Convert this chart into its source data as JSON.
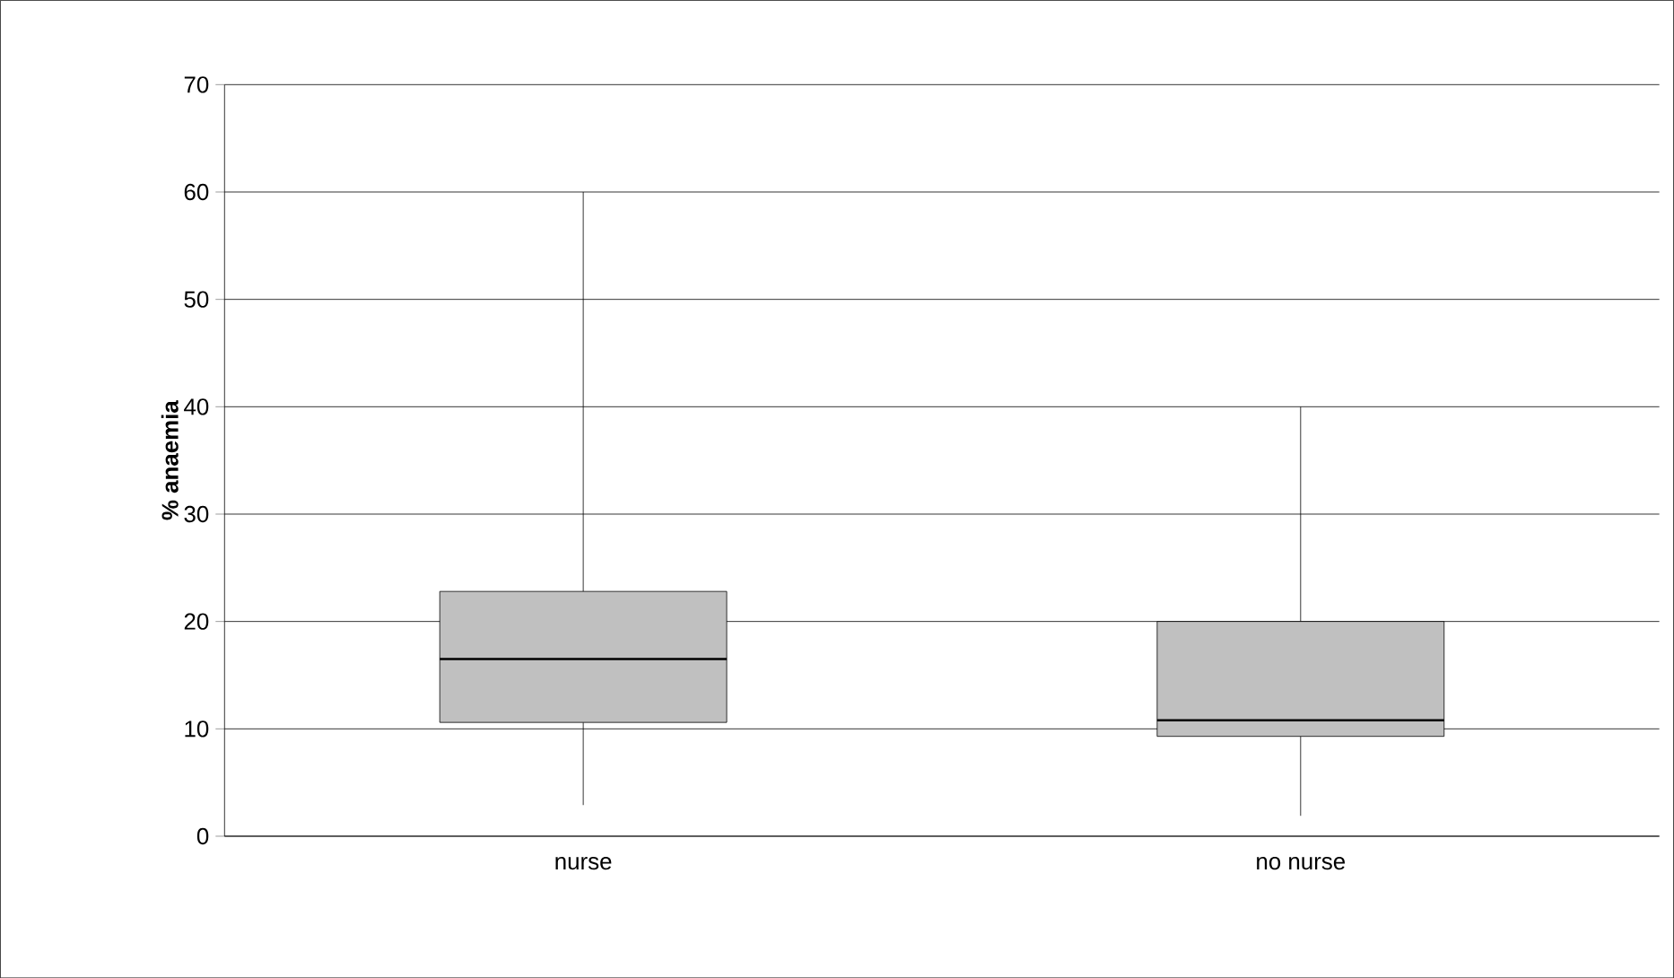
{
  "chart_data": {
    "type": "box",
    "ylabel": "% anaemia",
    "categories": [
      "nurse",
      "no nurse"
    ],
    "color": "#c0c0c0",
    "ylim": [
      0,
      70
    ],
    "yticks": [
      0,
      10,
      20,
      30,
      40,
      50,
      60,
      70
    ],
    "grid": "y",
    "boxes": [
      {
        "low": 2.9,
        "q1": 10.6,
        "median": 16.5,
        "q3": 22.8,
        "high": 60
      },
      {
        "low": 1.9,
        "q1": 9.3,
        "median": 10.8,
        "q3": 20,
        "high": 40
      }
    ]
  }
}
